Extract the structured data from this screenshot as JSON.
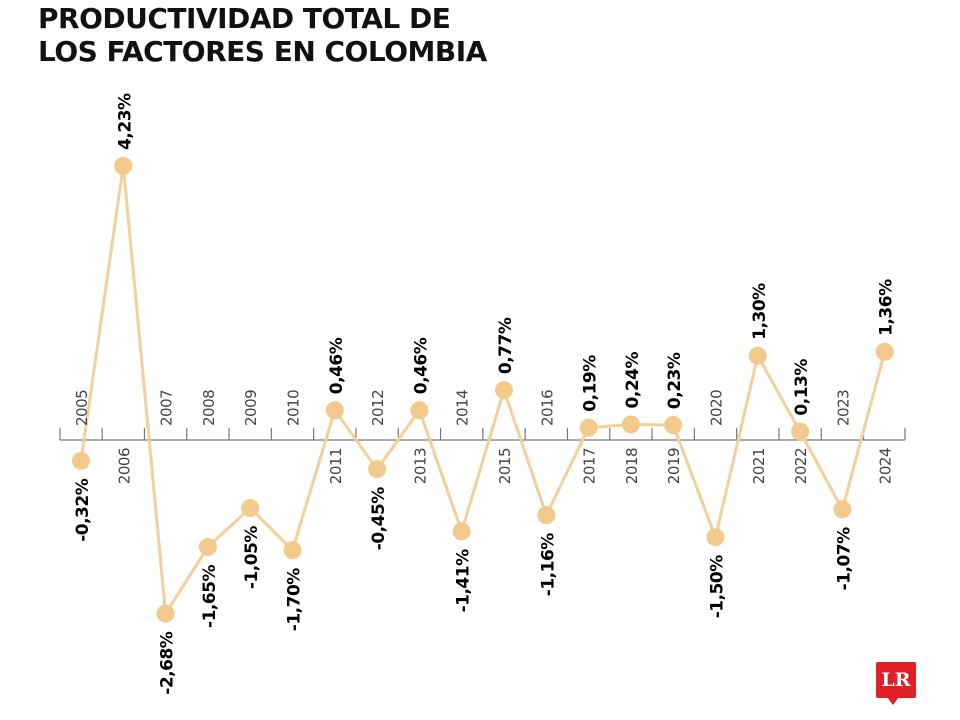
{
  "title_line1": "PRODUCTIVIDAD TOTAL DE",
  "title_line2": "LOS FACTORES EN COLOMBIA",
  "logo_text": "LR",
  "colors": {
    "line": "#f3d09b",
    "marker": "#f3c98c",
    "axis": "#777777",
    "label": "#000000",
    "logo": "#e01f26"
  },
  "chart_data": {
    "type": "line",
    "title": "PRODUCTIVIDAD TOTAL DE LOS FACTORES EN COLOMBIA",
    "xlabel": "",
    "ylabel": "",
    "grid": false,
    "categories": [
      "2005",
      "2006",
      "2007",
      "2008",
      "2009",
      "2010",
      "2011",
      "2012",
      "2013",
      "2014",
      "2015",
      "2016",
      "2017",
      "2018",
      "2019",
      "2020",
      "2021",
      "2022",
      "2023",
      "2024"
    ],
    "values": [
      -0.32,
      4.23,
      -2.68,
      -1.65,
      -1.05,
      -1.7,
      0.46,
      -0.45,
      0.46,
      -1.41,
      0.77,
      -1.16,
      0.19,
      0.24,
      0.23,
      -1.5,
      1.3,
      0.13,
      -1.07,
      1.36
    ],
    "data_labels": [
      "-0,32%",
      "4,23%",
      "-2,68%",
      "-1,65%",
      "-1,05%",
      "-1,70%",
      "0,46%",
      "-0,45%",
      "0,46%",
      "-1,41%",
      "0,77%",
      "-1,16%",
      "0,19%",
      "0,24%",
      "0,23%",
      "-1,50%",
      "1,30%",
      "0,13%",
      "-1,07%",
      "1,36%"
    ],
    "unit": "%",
    "ylim": [
      -2.68,
      4.23
    ]
  }
}
